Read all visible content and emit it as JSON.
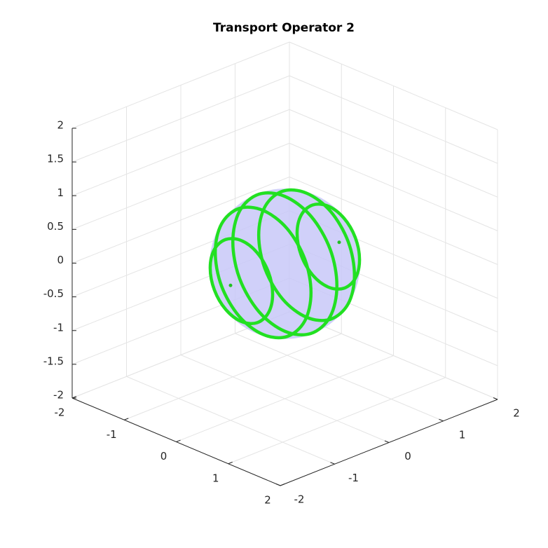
{
  "chart_data": {
    "type": "line3d",
    "title": "Transport Operator 2",
    "xlim": [
      -2,
      2
    ],
    "ylim": [
      -2,
      2
    ],
    "zlim": [
      -2,
      2
    ],
    "xticks": [
      -2,
      -1,
      0,
      1,
      2
    ],
    "yticks": [
      -2,
      -1,
      0,
      1,
      2
    ],
    "zticks": [
      -2,
      -1.5,
      -1,
      -0.5,
      0,
      0.5,
      1,
      1.5,
      2
    ],
    "grid": true,
    "sphere": {
      "radius": 1,
      "color": "#c8c8f8"
    },
    "series": [
      {
        "color": "#22e022",
        "x": [
          0.6,
          0.52,
          0.3,
          0,
          -0.3,
          -0.52,
          -0.6,
          -0.52,
          -0.3,
          0,
          0.3,
          0.52
        ],
        "y": [
          -0.8,
          -0.8,
          -0.8,
          -0.8,
          -0.8,
          -0.8,
          -0.8,
          -0.8,
          -0.8,
          -0.8,
          -0.8,
          -0.8
        ],
        "z": [
          0,
          0.3,
          0.52,
          0.6,
          0.52,
          0.3,
          0,
          -0.3,
          -0.52,
          -0.6,
          -0.52,
          -0.3
        ]
      },
      {
        "color": "#22e022",
        "x": [
          0.92,
          0.8,
          0.46,
          0,
          -0.46,
          -0.8,
          -0.92,
          -0.8,
          -0.46,
          0,
          0.46,
          0.8
        ],
        "y": [
          -0.4,
          -0.4,
          -0.4,
          -0.4,
          -0.4,
          -0.4,
          -0.4,
          -0.4,
          -0.4,
          -0.4,
          -0.4,
          -0.4
        ],
        "z": [
          0,
          0.46,
          0.8,
          0.92,
          0.8,
          0.46,
          0,
          -0.46,
          -0.8,
          -0.92,
          -0.8,
          -0.46
        ]
      },
      {
        "color": "#22e022",
        "x": [
          1,
          0.87,
          0.5,
          0,
          -0.5,
          -0.87,
          -1,
          -0.87,
          -0.5,
          0,
          0.5,
          0.87
        ],
        "y": [
          0,
          0,
          0,
          0,
          0,
          0,
          0,
          0,
          0,
          0,
          0,
          0
        ],
        "z": [
          0,
          0.5,
          0.87,
          1,
          0.87,
          0.5,
          0,
          -0.5,
          -0.87,
          -1,
          -0.87,
          -0.5
        ]
      },
      {
        "color": "#22e022",
        "x": [
          0.92,
          0.8,
          0.46,
          0,
          -0.46,
          -0.8,
          -0.92,
          -0.8,
          -0.46,
          0,
          0.46,
          0.8
        ],
        "y": [
          0.4,
          0.4,
          0.4,
          0.4,
          0.4,
          0.4,
          0.4,
          0.4,
          0.4,
          0.4,
          0.4,
          0.4
        ],
        "z": [
          0,
          0.46,
          0.8,
          0.92,
          0.8,
          0.46,
          0,
          -0.46,
          -0.8,
          -0.92,
          -0.8,
          -0.46
        ]
      },
      {
        "color": "#22e022",
        "x": [
          0.6,
          0.52,
          0.3,
          0,
          -0.3,
          -0.52,
          -0.6,
          -0.52,
          -0.3,
          0,
          0.3,
          0.52
        ],
        "y": [
          0.8,
          0.8,
          0.8,
          0.8,
          0.8,
          0.8,
          0.8,
          0.8,
          0.8,
          0.8,
          0.8,
          0.8
        ],
        "z": [
          0,
          0.3,
          0.52,
          0.6,
          0.52,
          0.3,
          0,
          -0.3,
          -0.52,
          -0.6,
          -0.52,
          -0.3
        ]
      }
    ],
    "points": {
      "color": "#22c022",
      "x": [
        0,
        0
      ],
      "y": [
        -1,
        1
      ],
      "z": [
        0,
        0
      ]
    }
  }
}
